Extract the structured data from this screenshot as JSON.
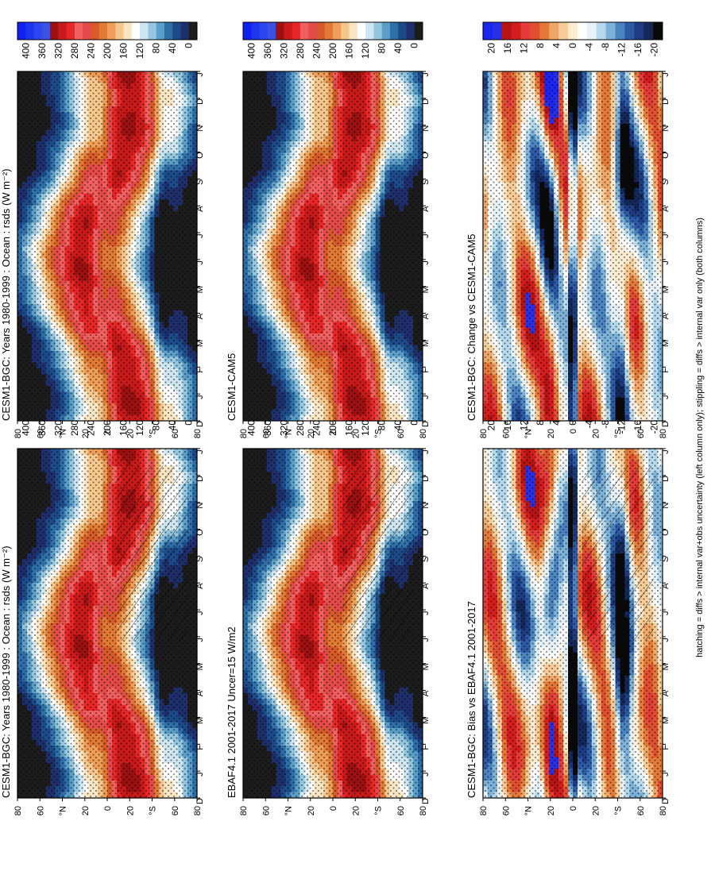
{
  "figure": {
    "footnote": "hatching = diffs > internal var+obs uncertainty (left column only); stippling = diffs > internal var only (both columns)",
    "months": [
      "D",
      "J",
      "F",
      "M",
      "A",
      "M",
      "J",
      "J",
      "A",
      "S",
      "O",
      "N",
      "D",
      "J"
    ],
    "lat_ticks": [
      "80",
      "60",
      "°N",
      "20",
      "0",
      "20",
      "°S",
      "60",
      "80"
    ]
  },
  "colors": {
    "abs_levels": [
      "#1c1c1c",
      "#1f2f6b",
      "#1d4b8a",
      "#2f6fa8",
      "#5b9ec8",
      "#95c6df",
      "#cde6ef",
      "#ffffff",
      "#fbe6c4",
      "#f6c68c",
      "#ee9e56",
      "#e07a34",
      "#d65a2a",
      "#e34a4a",
      "#f06060",
      "#e82828",
      "#c81a1a",
      "#9b1010",
      "#3c50e6",
      "#2d45ee",
      "#2035f0",
      "#1020f0"
    ],
    "diff_levels": [
      "#0a0a0a",
      "#14285a",
      "#1e3c82",
      "#2d5aa5",
      "#4b84c0",
      "#7db2d8",
      "#b4d8ec",
      "#e6f2f8",
      "#ffffff",
      "#fdebd2",
      "#f8cc96",
      "#f0a666",
      "#e47a3a",
      "#e05030",
      "#e43a3a",
      "#d41e1e",
      "#b41414",
      "#2830e6",
      "#1c24f0"
    ]
  },
  "panels": [
    {
      "id": "bgc-1980-1999",
      "title": "CESM1-BGC: Years 1980-1999 : Ocean : rsds (W m⁻²)",
      "colorbar_labels": [
        "400",
        "360",
        "320",
        "280",
        "240",
        "200",
        "160",
        "120",
        "80",
        "40",
        "0"
      ],
      "hatched": true
    },
    {
      "id": "ebaf",
      "title": "EBAF4.1 2001-2017 Uncer=15 W/m2",
      "colorbar_labels": [
        "400",
        "360",
        "320",
        "280",
        "240",
        "200",
        "160",
        "120",
        "80",
        "40",
        "0"
      ],
      "hatched": true
    },
    {
      "id": "bias-ebaf",
      "title": "CESM1-BGC: Bias vs EBAF4.1 2001-2017",
      "colorbar_labels": [
        "20",
        "16",
        "12",
        "8",
        "4",
        "0",
        "-4",
        "-8",
        "-12",
        "-16",
        "-20"
      ],
      "hatched": true
    },
    {
      "id": "bgc-1980-1999-right",
      "title": "CESM1-BGC: Years 1980-1999 : Ocean : rsds (W m⁻²)",
      "colorbar_labels": [
        "400",
        "360",
        "320",
        "280",
        "240",
        "200",
        "160",
        "120",
        "80",
        "40",
        "0"
      ],
      "hatched": false
    },
    {
      "id": "cam5",
      "title": "CESM1-CAM5",
      "colorbar_labels": [
        "400",
        "360",
        "320",
        "280",
        "240",
        "200",
        "160",
        "120",
        "80",
        "40",
        "0"
      ],
      "hatched": false
    },
    {
      "id": "change-cam5",
      "title": "CESM1-BGC: Change vs CESM1-CAM5",
      "colorbar_labels": [
        "20",
        "16",
        "12",
        "8",
        "4",
        "0",
        "-4",
        "-8",
        "-12",
        "-16",
        "-20"
      ],
      "hatched": false
    }
  ],
  "chart_data": [
    {
      "type": "heatmap",
      "title": "CESM1-BGC: Years 1980-1999 : Ocean : rsds (W m⁻²)",
      "x_ticks": [
        "D",
        "J",
        "F",
        "M",
        "A",
        "M",
        "J",
        "J",
        "A",
        "S",
        "O",
        "N",
        "D",
        "J"
      ],
      "y_ticks": [
        "80",
        "60",
        "°N",
        "20",
        "0",
        "20",
        "°S",
        "60",
        "80"
      ],
      "colorbar": [
        400,
        360,
        320,
        280,
        240,
        200,
        160,
        120,
        80,
        40,
        0
      ]
    },
    {
      "type": "heatmap",
      "title": "EBAF4.1 2001-2017 Uncer=15 W/m2",
      "x_ticks": [
        "D",
        "J",
        "F",
        "M",
        "A",
        "M",
        "J",
        "J",
        "A",
        "S",
        "O",
        "N",
        "D",
        "J"
      ],
      "y_ticks": [
        "80",
        "60",
        "°N",
        "20",
        "0",
        "20",
        "°S",
        "60",
        "80"
      ],
      "colorbar": [
        400,
        360,
        320,
        280,
        240,
        200,
        160,
        120,
        80,
        40,
        0
      ]
    },
    {
      "type": "heatmap",
      "title": "CESM1-BGC: Bias vs EBAF4.1 2001-2017",
      "x_ticks": [
        "D",
        "J",
        "F",
        "M",
        "A",
        "M",
        "J",
        "J",
        "A",
        "S",
        "O",
        "N",
        "D",
        "J"
      ],
      "y_ticks": [
        "80",
        "60",
        "°N",
        "20",
        "0",
        "20",
        "°S",
        "60",
        "80"
      ],
      "colorbar": [
        20,
        16,
        12,
        8,
        4,
        0,
        -4,
        -8,
        -12,
        -16,
        -20
      ]
    },
    {
      "type": "heatmap",
      "title": "CESM1-BGC: Years 1980-1999 : Ocean : rsds (W m⁻²)",
      "x_ticks": [
        "D",
        "J",
        "F",
        "M",
        "A",
        "M",
        "J",
        "J",
        "A",
        "S",
        "O",
        "N",
        "D",
        "J"
      ],
      "y_ticks": [
        "80",
        "60",
        "°N",
        "20",
        "0",
        "20",
        "°S",
        "60",
        "80"
      ],
      "colorbar": [
        400,
        360,
        320,
        280,
        240,
        200,
        160,
        120,
        80,
        40,
        0
      ]
    },
    {
      "type": "heatmap",
      "title": "CESM1-CAM5",
      "x_ticks": [
        "D",
        "J",
        "F",
        "M",
        "A",
        "M",
        "J",
        "J",
        "A",
        "S",
        "O",
        "N",
        "D",
        "J"
      ],
      "y_ticks": [
        "80",
        "60",
        "°N",
        "20",
        "0",
        "20",
        "°S",
        "60",
        "80"
      ],
      "colorbar": [
        400,
        360,
        320,
        280,
        240,
        200,
        160,
        120,
        80,
        40,
        0
      ]
    },
    {
      "type": "heatmap",
      "title": "CESM1-BGC: Change vs CESM1-CAM5",
      "x_ticks": [
        "D",
        "J",
        "F",
        "M",
        "A",
        "M",
        "J",
        "J",
        "A",
        "S",
        "O",
        "N",
        "D",
        "J"
      ],
      "y_ticks": [
        "80",
        "60",
        "°N",
        "20",
        "0",
        "20",
        "°S",
        "60",
        "80"
      ],
      "colorbar": [
        20,
        16,
        12,
        8,
        4,
        0,
        -4,
        -8,
        -12,
        -16,
        -20
      ]
    }
  ]
}
